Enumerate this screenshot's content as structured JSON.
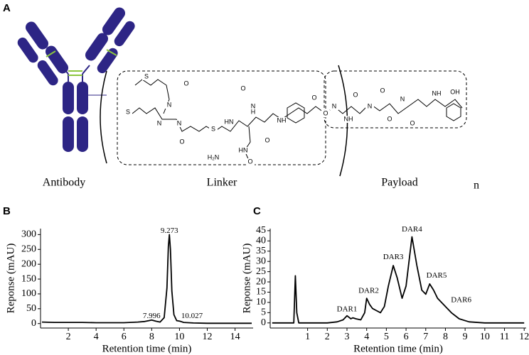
{
  "panel_a": {
    "label": "A",
    "captions": [
      "Antibody",
      "Linker",
      "Payload"
    ],
    "repeat": "n",
    "atoms": [
      "S",
      "S",
      "N",
      "N",
      "N",
      "O",
      "O",
      "S",
      "O",
      "HN",
      "N",
      "H",
      "O",
      "NH",
      "HN",
      "O",
      "H₂N",
      "O",
      "O",
      "N",
      "NH",
      "O",
      "N",
      "O",
      "O",
      "N",
      "O",
      "NH",
      "OH"
    ]
  },
  "chart_data": [
    {
      "type": "line",
      "label": "B",
      "ylabel": "Reponse (mAU)",
      "xlabel": "Retention time (min)",
      "xlim": [
        0,
        15.3
      ],
      "ylim": [
        -15,
        320
      ],
      "xticks": [
        2,
        4,
        6,
        8,
        10,
        12,
        14
      ],
      "yticks": [
        0,
        50,
        100,
        150,
        200,
        250,
        300
      ],
      "x": [
        0.1,
        1,
        2,
        3,
        4,
        5,
        6,
        7,
        7.5,
        7.8,
        8.0,
        8.3,
        8.6,
        8.9,
        9.1,
        9.2,
        9.273,
        9.35,
        9.45,
        9.6,
        9.8,
        10.027,
        10.3,
        11,
        12,
        13,
        14,
        15.2
      ],
      "series": [
        {
          "color": "#000000",
          "values": [
            5,
            4,
            4,
            4,
            3,
            3,
            3,
            5,
            7,
            10,
            12,
            8,
            5,
            20,
            120,
            260,
            300,
            250,
            110,
            30,
            10,
            8,
            4,
            2,
            1,
            1,
            1,
            1
          ]
        }
      ],
      "annotations": [
        {
          "text": "7.996",
          "x": 7.996,
          "y": 25
        },
        {
          "text": "9.273",
          "x": 9.273,
          "y": 312
        },
        {
          "text": "10.027",
          "x": 10.9,
          "y": 25
        }
      ]
    },
    {
      "type": "line",
      "label": "C",
      "ylabel": "Reponse (mAU)",
      "xlabel": "Retention time (min)",
      "xlim": [
        -0.9,
        12.1
      ],
      "ylim": [
        -2.5,
        46
      ],
      "xticks": [
        1,
        2,
        3,
        4,
        5,
        6,
        7,
        8,
        9,
        10,
        11,
        12
      ],
      "yticks": [
        0,
        5,
        10,
        15,
        20,
        25,
        30,
        35,
        40,
        45
      ],
      "x": [
        -0.8,
        0,
        0.3,
        0.38,
        0.45,
        0.55,
        1,
        2,
        2.5,
        2.8,
        3.0,
        3.2,
        3.3,
        3.45,
        3.7,
        3.9,
        4.0,
        4.15,
        4.3,
        4.5,
        4.7,
        4.9,
        5.1,
        5.35,
        5.55,
        5.8,
        6.0,
        6.3,
        6.55,
        6.8,
        7.0,
        7.2,
        7.4,
        7.6,
        7.8,
        8.0,
        8.3,
        8.7,
        9.2,
        10,
        11,
        12
      ],
      "series": [
        {
          "color": "#000000",
          "values": [
            0,
            0,
            0,
            23,
            5,
            0,
            0,
            0,
            0.5,
            1.5,
            3.5,
            2,
            2.5,
            2,
            1.5,
            5,
            12,
            9,
            7,
            6,
            5,
            8,
            18,
            28,
            22,
            12,
            18,
            42,
            28,
            16,
            14,
            19,
            16,
            12,
            10,
            8,
            5,
            2,
            0.5,
            0,
            0,
            0
          ]
        }
      ],
      "annotations": [
        {
          "text": "DAR1",
          "x": 3.0,
          "y": 6.5
        },
        {
          "text": "DAR2",
          "x": 4.1,
          "y": 15.5
        },
        {
          "text": "DAR3",
          "x": 5.35,
          "y": 32
        },
        {
          "text": "DAR4",
          "x": 6.3,
          "y": 45.5
        },
        {
          "text": "DAR5",
          "x": 7.55,
          "y": 23
        },
        {
          "text": "DAR6",
          "x": 8.8,
          "y": 11
        }
      ]
    }
  ]
}
